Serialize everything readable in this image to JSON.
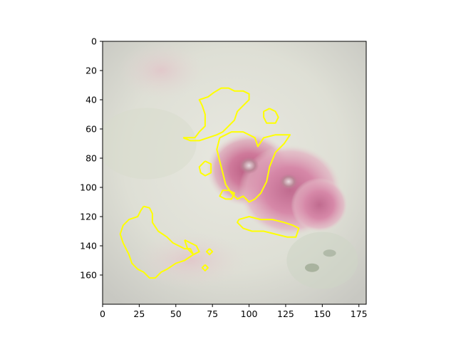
{
  "chart_data": {
    "type": "image",
    "title": "",
    "xlabel": "",
    "ylabel": "",
    "xlim": [
      0,
      180
    ],
    "ylim": [
      180,
      0
    ],
    "y_inverted": true,
    "xticks": [
      0,
      25,
      50,
      75,
      100,
      125,
      150,
      175
    ],
    "yticks": [
      0,
      20,
      40,
      60,
      80,
      100,
      120,
      140,
      160
    ],
    "grid": false,
    "legend": "none",
    "image_content": "faded pink rose flowers on pale green-grey background",
    "overlay": {
      "type": "contour",
      "color": "#ffff00",
      "contours": [
        {
          "points": [
            [
              55,
              66
            ],
            [
              63,
              66
            ],
            [
              66,
              62
            ],
            [
              70,
              58
            ],
            [
              70,
              50
            ],
            [
              68,
              44
            ],
            [
              66,
              40
            ],
            [
              72,
              38
            ],
            [
              76,
              35
            ],
            [
              81,
              32
            ],
            [
              86,
              32
            ],
            [
              90,
              34
            ],
            [
              96,
              34
            ],
            [
              100,
              36
            ],
            [
              100,
              40
            ],
            [
              96,
              44
            ],
            [
              92,
              48
            ],
            [
              90,
              54
            ],
            [
              86,
              58
            ],
            [
              82,
              62
            ],
            [
              78,
              64
            ],
            [
              72,
              66
            ],
            [
              66,
              68
            ],
            [
              60,
              68
            ],
            [
              55,
              66
            ]
          ]
        },
        {
          "points": [
            [
              80,
              66
            ],
            [
              88,
              62
            ],
            [
              96,
              62
            ],
            [
              104,
              66
            ],
            [
              106,
              72
            ],
            [
              110,
              66
            ],
            [
              118,
              64
            ],
            [
              128,
              64
            ],
            [
              124,
              70
            ],
            [
              118,
              76
            ],
            [
              114,
              86
            ],
            [
              112,
              96
            ],
            [
              108,
              104
            ],
            [
              104,
              108
            ],
            [
              100,
              110
            ],
            [
              96,
              106
            ],
            [
              92,
              108
            ],
            [
              88,
              104
            ],
            [
              84,
              98
            ],
            [
              82,
              90
            ],
            [
              80,
              82
            ],
            [
              78,
              74
            ],
            [
              80,
              66
            ]
          ]
        },
        {
          "points": [
            [
              70,
              82
            ],
            [
              74,
              84
            ],
            [
              74,
              90
            ],
            [
              70,
              92
            ],
            [
              67,
              90
            ],
            [
              66,
              86
            ],
            [
              70,
              82
            ]
          ]
        },
        {
          "points": [
            [
              86,
              102
            ],
            [
              90,
              104
            ],
            [
              88,
              108
            ],
            [
              84,
              108
            ],
            [
              80,
              106
            ],
            [
              82,
              102
            ],
            [
              86,
              102
            ]
          ]
        },
        {
          "points": [
            [
              114,
              46
            ],
            [
              118,
              48
            ],
            [
              120,
              52
            ],
            [
              118,
              56
            ],
            [
              112,
              56
            ],
            [
              110,
              52
            ],
            [
              110,
              48
            ],
            [
              114,
              46
            ]
          ]
        },
        {
          "points": [
            [
              93,
              122
            ],
            [
              100,
              120
            ],
            [
              108,
              122
            ],
            [
              116,
              122
            ],
            [
              124,
              124
            ],
            [
              130,
              126
            ],
            [
              134,
              128
            ],
            [
              132,
              134
            ],
            [
              126,
              134
            ],
            [
              118,
              132
            ],
            [
              110,
              130
            ],
            [
              102,
              130
            ],
            [
              96,
              128
            ],
            [
              92,
              124
            ],
            [
              93,
              122
            ]
          ]
        },
        {
          "points": [
            [
              28,
              113
            ],
            [
              32,
              114
            ],
            [
              34,
              118
            ],
            [
              34,
              124
            ],
            [
              38,
              130
            ],
            [
              44,
              134
            ],
            [
              48,
              138
            ],
            [
              52,
              140
            ],
            [
              56,
              142
            ],
            [
              60,
              142
            ],
            [
              62,
              146
            ],
            [
              56,
              150
            ],
            [
              50,
              152
            ],
            [
              44,
              156
            ],
            [
              40,
              158
            ],
            [
              36,
              162
            ],
            [
              32,
              162
            ],
            [
              28,
              158
            ],
            [
              24,
              156
            ],
            [
              20,
              152
            ],
            [
              18,
              146
            ],
            [
              14,
              138
            ],
            [
              12,
              132
            ],
            [
              14,
              126
            ],
            [
              18,
              122
            ],
            [
              24,
              120
            ],
            [
              26,
              116
            ],
            [
              28,
              113
            ]
          ]
        },
        {
          "points": [
            [
              56,
              136
            ],
            [
              60,
              138
            ],
            [
              64,
              140
            ],
            [
              66,
              144
            ],
            [
              62,
              146
            ],
            [
              58,
              142
            ],
            [
              56,
              136
            ]
          ]
        },
        {
          "points": [
            [
              70,
              153
            ],
            [
              72,
              155
            ],
            [
              70,
              157
            ],
            [
              68,
              155
            ],
            [
              70,
              153
            ]
          ]
        },
        {
          "points": [
            [
              73,
              142
            ],
            [
              75,
              144
            ],
            [
              73,
              146
            ],
            [
              71,
              144
            ],
            [
              73,
              142
            ]
          ]
        }
      ]
    }
  }
}
